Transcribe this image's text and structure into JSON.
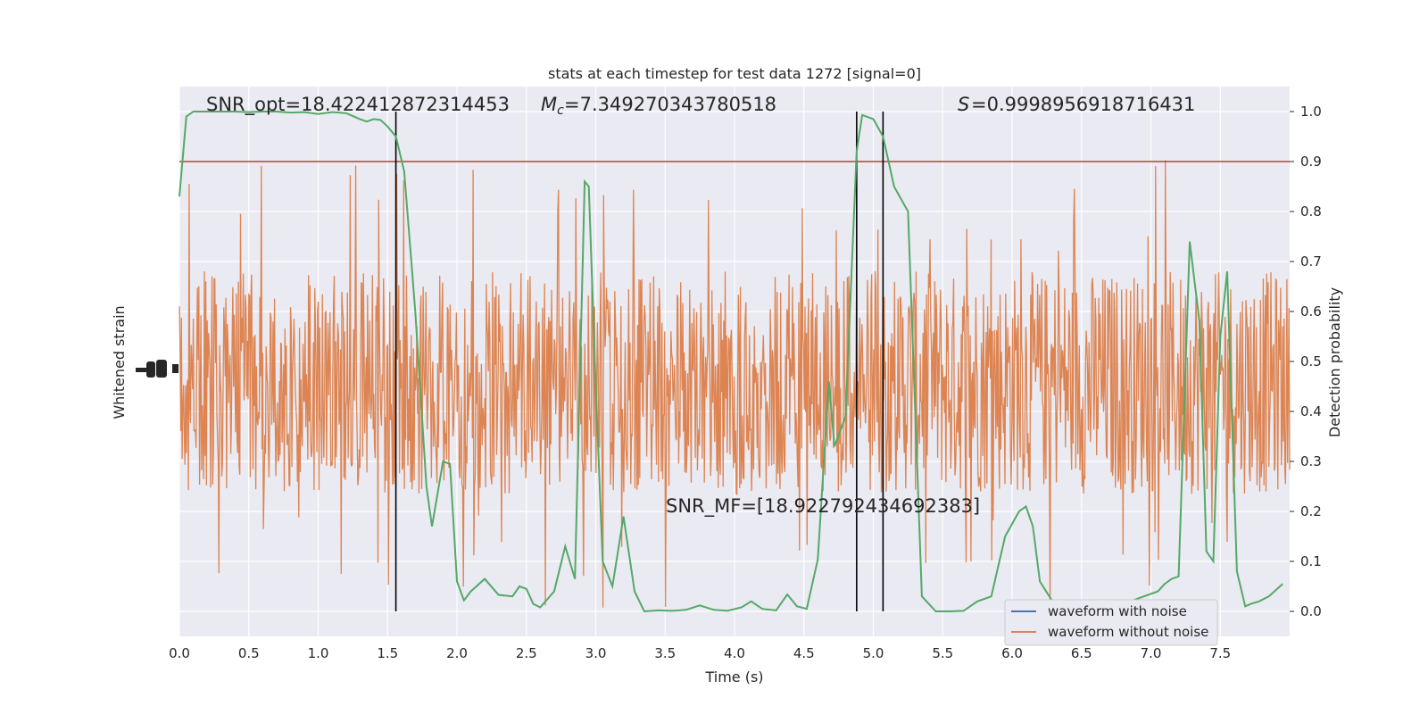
{
  "chart_data": {
    "type": "line",
    "title": "stats at each timestep for test data 1272 [signal=0]",
    "xlabel": "Time (s)",
    "ylabel_left": "Whitened strain",
    "ylabel_right": "Detection probability",
    "xlim": [
      0,
      8
    ],
    "ylim_right": [
      -0.05,
      1.05
    ],
    "x_ticks": [
      "0.0",
      "0.5",
      "1.0",
      "1.5",
      "2.0",
      "2.5",
      "3.0",
      "3.5",
      "4.0",
      "4.5",
      "5.0",
      "5.5",
      "6.0",
      "6.5",
      "7.0",
      "7.5"
    ],
    "y_ticks_right": [
      "0.0",
      "0.1",
      "0.2",
      "0.3",
      "0.4",
      "0.5",
      "0.6",
      "0.7",
      "0.8",
      "0.9",
      "1.0"
    ],
    "grid": true,
    "threshold": {
      "y": 0.9,
      "color": "#b0403a"
    },
    "vlines": [
      1.56,
      4.88,
      5.07
    ],
    "annotations": {
      "snr_opt": "SNR_opt=18.422412872314453",
      "mc": "=7.349270343780518",
      "s": "=0.9998956918716431",
      "snr_mf": "SNR_MF=[18.922792434692383]"
    },
    "legend": {
      "position": "lower-right",
      "entries": [
        {
          "label": "waveform with noise",
          "color": "#4c72b0"
        },
        {
          "label": "waveform without noise",
          "color": "#dd8452"
        }
      ]
    },
    "series": [
      {
        "name": "waveform without noise",
        "color": "#dd8452",
        "kind": "noise-strain",
        "band": [
          0.195,
          0.72
        ],
        "spike_range": [
          0.0,
          1.0
        ]
      },
      {
        "name": "Detection probability",
        "color": "#55a868",
        "x": [
          0.0,
          0.05,
          0.1,
          0.2,
          0.3,
          0.4,
          0.5,
          0.6,
          0.7,
          0.8,
          0.9,
          1.0,
          1.1,
          1.2,
          1.3,
          1.35,
          1.4,
          1.45,
          1.5,
          1.56,
          1.62,
          1.7,
          1.78,
          1.82,
          1.9,
          1.95,
          2.0,
          2.05,
          2.1,
          2.2,
          2.3,
          2.4,
          2.45,
          2.5,
          2.55,
          2.6,
          2.7,
          2.78,
          2.85,
          2.92,
          2.95,
          3.0,
          3.05,
          3.12,
          3.2,
          3.28,
          3.35,
          3.45,
          3.55,
          3.65,
          3.75,
          3.85,
          3.95,
          4.05,
          4.12,
          4.2,
          4.3,
          4.38,
          4.45,
          4.52,
          4.6,
          4.68,
          4.72,
          4.8,
          4.88,
          4.92,
          4.95,
          5.0,
          5.07,
          5.15,
          5.25,
          5.35,
          5.45,
          5.55,
          5.65,
          5.75,
          5.85,
          5.95,
          6.05,
          6.1,
          6.15,
          6.2,
          6.28,
          6.35,
          6.45,
          6.55,
          6.65,
          6.75,
          6.85,
          6.95,
          7.05,
          7.1,
          7.15,
          7.2,
          7.28,
          7.35,
          7.4,
          7.45,
          7.5,
          7.55,
          7.62,
          7.68,
          7.72,
          7.78,
          7.85,
          7.95
        ],
        "y": [
          0.83,
          0.99,
          1.0,
          1.0,
          1.0,
          1.0,
          0.999,
          1.0,
          1.0,
          0.998,
          0.999,
          0.995,
          0.999,
          0.997,
          0.985,
          0.98,
          0.985,
          0.983,
          0.97,
          0.95,
          0.88,
          0.6,
          0.25,
          0.17,
          0.3,
          0.295,
          0.06,
          0.022,
          0.04,
          0.065,
          0.033,
          0.03,
          0.05,
          0.045,
          0.015,
          0.008,
          0.04,
          0.13,
          0.065,
          0.86,
          0.85,
          0.45,
          0.1,
          0.05,
          0.19,
          0.04,
          0.0,
          0.002,
          0.001,
          0.003,
          0.012,
          0.003,
          0.001,
          0.008,
          0.02,
          0.005,
          0.002,
          0.034,
          0.01,
          0.005,
          0.104,
          0.46,
          0.33,
          0.39,
          0.92,
          0.993,
          0.99,
          0.985,
          0.95,
          0.85,
          0.8,
          0.03,
          0.0,
          0.0,
          0.001,
          0.02,
          0.03,
          0.15,
          0.2,
          0.21,
          0.17,
          0.06,
          0.025,
          0.0,
          0.0,
          0.005,
          0.008,
          0.012,
          0.02,
          0.03,
          0.04,
          0.055,
          0.065,
          0.07,
          0.74,
          0.58,
          0.12,
          0.1,
          0.55,
          0.68,
          0.08,
          0.01,
          0.015,
          0.02,
          0.03,
          0.055
        ]
      }
    ]
  }
}
